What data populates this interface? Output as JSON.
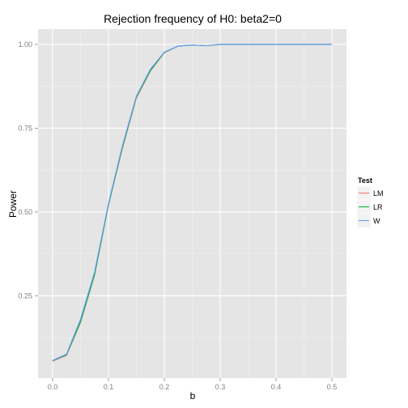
{
  "chart_data": {
    "type": "line",
    "title": "Rejection frequency of H0: beta2=0",
    "xlabel": "b",
    "ylabel": "Power",
    "xlim": [
      -0.026,
      0.526
    ],
    "ylim": [
      0.0045,
      1.0455
    ],
    "x_ticks": [
      0.0,
      0.1,
      0.2,
      0.3,
      0.4,
      0.5
    ],
    "x_tick_labels": [
      "0.0",
      "0.1",
      "0.2",
      "0.3",
      "0.4",
      "0.5"
    ],
    "y_ticks": [
      0.25,
      0.5,
      0.75,
      1.0
    ],
    "y_tick_labels": [
      "0.25",
      "0.50",
      "0.75",
      "1.00"
    ],
    "grid": true,
    "legend_title": "Test",
    "legend_position": "right",
    "x": [
      0.0,
      0.025,
      0.05,
      0.075,
      0.1,
      0.125,
      0.15,
      0.175,
      0.2,
      0.225,
      0.25,
      0.275,
      0.3,
      0.325,
      0.35,
      0.375,
      0.4,
      0.425,
      0.45,
      0.475,
      0.5
    ],
    "series": [
      {
        "name": "LM",
        "color": "#F8766D",
        "values": [
          0.055,
          0.072,
          0.17,
          0.31,
          0.52,
          0.69,
          0.84,
          0.92,
          0.975,
          0.995,
          0.998,
          0.996,
          1.0,
          1.0,
          1.0,
          1.0,
          1.0,
          1.0,
          1.0,
          1.0,
          1.0
        ]
      },
      {
        "name": "LR",
        "color": "#00BA38",
        "values": [
          0.056,
          0.074,
          0.172,
          0.312,
          0.521,
          0.693,
          0.843,
          0.922,
          0.976,
          0.995,
          0.998,
          0.996,
          1.0,
          1.0,
          1.0,
          1.0,
          1.0,
          1.0,
          1.0,
          1.0,
          1.0
        ]
      },
      {
        "name": "W",
        "color": "#619CFF",
        "values": [
          0.057,
          0.076,
          0.18,
          0.32,
          0.525,
          0.698,
          0.846,
          0.926,
          0.977,
          0.995,
          0.998,
          0.996,
          1.0,
          1.0,
          1.0,
          1.0,
          1.0,
          1.0,
          1.0,
          1.0,
          1.0
        ]
      }
    ]
  }
}
